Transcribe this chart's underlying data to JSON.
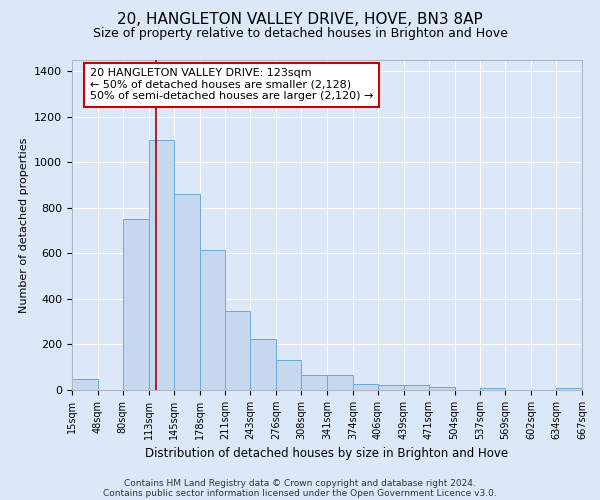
{
  "title": "20, HANGLETON VALLEY DRIVE, HOVE, BN3 8AP",
  "subtitle": "Size of property relative to detached houses in Brighton and Hove",
  "xlabel": "Distribution of detached houses by size in Brighton and Hove",
  "ylabel": "Number of detached properties",
  "footnote1": "Contains HM Land Registry data © Crown copyright and database right 2024.",
  "footnote2": "Contains public sector information licensed under the Open Government Licence v3.0.",
  "bin_edges": [
    15,
    48,
    80,
    113,
    145,
    178,
    211,
    243,
    276,
    308,
    341,
    374,
    406,
    439,
    471,
    504,
    537,
    569,
    602,
    634,
    667
  ],
  "bar_heights": [
    50,
    0,
    750,
    1100,
    860,
    615,
    345,
    225,
    130,
    65,
    65,
    28,
    22,
    20,
    12,
    0,
    10,
    0,
    0,
    10
  ],
  "bar_color": "#c5d8f0",
  "bar_edgecolor": "#6aaad4",
  "vline_x": 123,
  "vline_color": "#aa0000",
  "annotation_line1": "20 HANGLETON VALLEY DRIVE: 123sqm",
  "annotation_line2": "← 50% of detached houses are smaller (2,128)",
  "annotation_line3": "50% of semi-detached houses are larger (2,120) →",
  "annotation_box_color": "#ffffff",
  "annotation_box_edgecolor": "#cc0000",
  "ylim": [
    0,
    1450
  ],
  "xlim": [
    15,
    667
  ],
  "bg_color": "#dce8f8",
  "plot_bg_color": "#dce8f8",
  "grid_color": "#ffffff",
  "title_fontsize": 11,
  "subtitle_fontsize": 9,
  "annot_fontsize": 8,
  "tick_label_fontsize": 7,
  "ylabel_fontsize": 8,
  "xlabel_fontsize": 8.5,
  "footnote_fontsize": 6.5
}
